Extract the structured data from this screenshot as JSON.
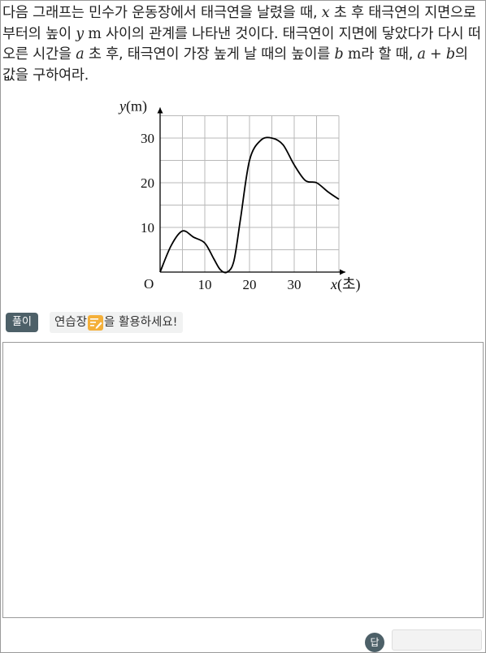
{
  "question": {
    "p1": "다음 그래프는 민수가 운동장에서 태극연을 날렸을 때, ",
    "var_x": "x",
    "p2": " 초 후 태극연의 지면으로부터의 높이 ",
    "var_y": "y",
    "unit_m1": " m",
    "p3": " 사이의 관계를 나타낸 것이다. 태극연이 지면에 닿았다가 다시 떠오른 시간을 ",
    "var_a1": "a",
    "p4": " 초 후, 태극연이 가장 높게 날 때의 높이를 ",
    "var_b1": "b",
    "unit_m2": " m",
    "p5": "라 할 때, ",
    "expr_a": "a",
    "expr_plus": " + ",
    "expr_b": "b",
    "p6": "의 값을 구하여라."
  },
  "chart_data": {
    "type": "line",
    "ylabel_var": "y",
    "ylabel_unit": "(m)",
    "xlabel_var": "x",
    "xlabel_unit": "(초)",
    "origin_label": "O",
    "x_ticks": [
      "10",
      "20",
      "30"
    ],
    "y_ticks": [
      "10",
      "20",
      "30"
    ],
    "xlim": [
      0,
      40
    ],
    "ylim": [
      0,
      35
    ],
    "grid": true,
    "grid_step": 5,
    "series": [
      {
        "x": [
          0,
          2.5,
          5,
          7.5,
          10,
          12,
          13.5,
          15,
          16.5,
          18,
          20,
          22.5,
          25,
          27.5,
          30,
          32.5,
          35,
          37.5,
          40
        ],
        "y": [
          0,
          6,
          9.2,
          7.8,
          6.5,
          3,
          0.5,
          0,
          2.5,
          12,
          25,
          29.5,
          30,
          28.5,
          24,
          20.5,
          20,
          18,
          16.3
        ]
      }
    ]
  },
  "solution": {
    "badge": "풀이",
    "tip_prefix": "연습장",
    "tip_icon": "notepad-pencil-icon",
    "tip_suffix": "을 활용하세요!"
  },
  "answer": {
    "badge": "답",
    "value": ""
  },
  "colors": {
    "badge_bg": "#4d6068",
    "tip_bg": "#f1f2f2",
    "icon_bg": "#f4b03a",
    "grid": "#b9b9b9"
  }
}
